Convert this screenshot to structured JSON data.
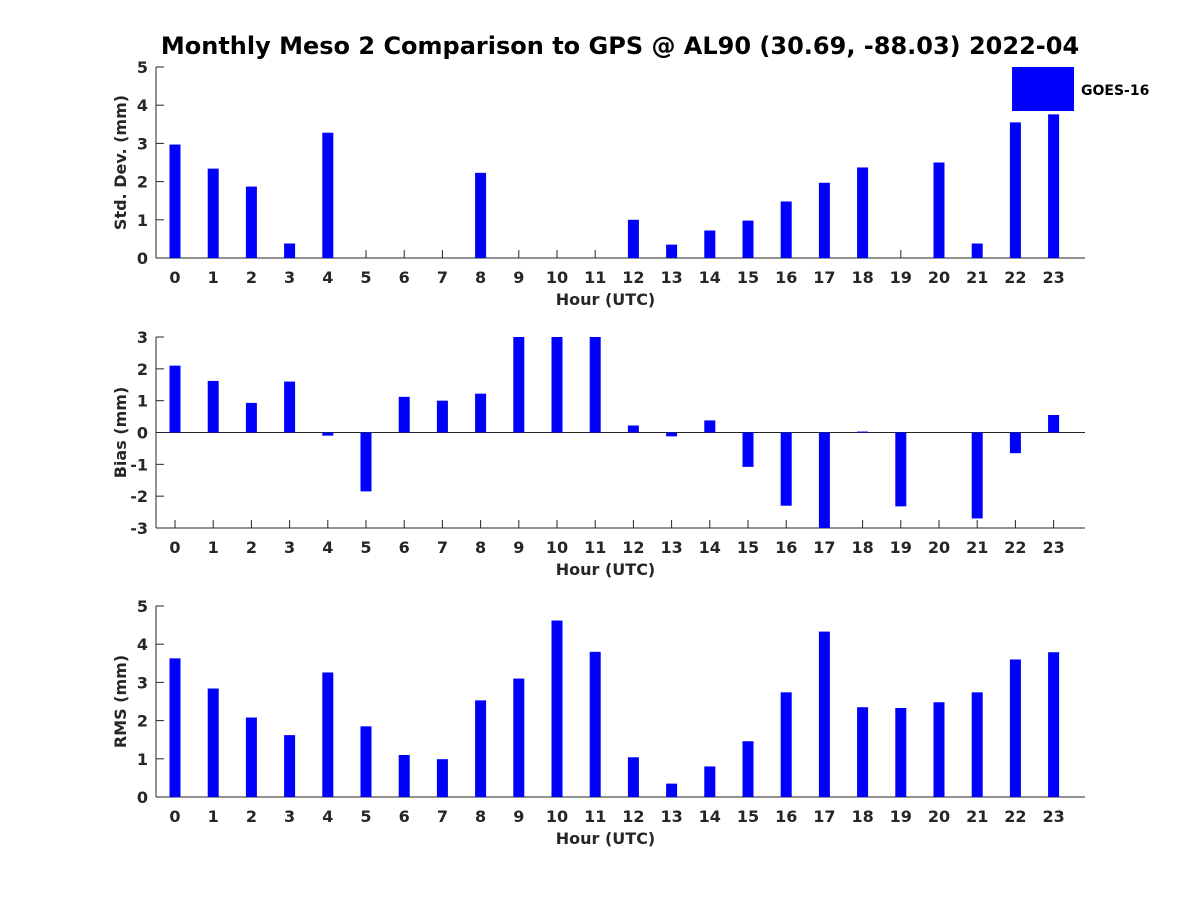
{
  "title": "Monthly Meso 2 Comparison to GPS @ AL90 (30.69, -88.03) 2022-04",
  "legend": {
    "label": "GOES-16",
    "color": "#0000ff",
    "placement": "top-right"
  },
  "chart_data": [
    {
      "type": "bar",
      "xlabel": "Hour (UTC)",
      "ylabel": "Std. Dev. (mm)",
      "ylim": [
        0,
        5
      ],
      "yticks": [
        0,
        1,
        2,
        3,
        4,
        5
      ],
      "categories": [
        "0",
        "1",
        "2",
        "3",
        "4",
        "5",
        "6",
        "7",
        "8",
        "9",
        "10",
        "11",
        "12",
        "13",
        "14",
        "15",
        "16",
        "17",
        "18",
        "19",
        "20",
        "21",
        "22",
        "23"
      ],
      "series": [
        {
          "name": "GOES-16",
          "values": [
            2.97,
            2.34,
            1.87,
            0.38,
            3.28,
            0,
            0,
            0,
            2.23,
            0,
            0,
            0,
            1.0,
            0.35,
            0.72,
            0.98,
            1.48,
            1.97,
            2.37,
            0,
            2.5,
            0.38,
            3.55,
            3.76
          ]
        }
      ]
    },
    {
      "type": "bar",
      "xlabel": "Hour (UTC)",
      "ylabel": "Bias (mm)",
      "ylim": [
        -3,
        3
      ],
      "yticks": [
        -3,
        -2,
        -1,
        0,
        1,
        2,
        3
      ],
      "categories": [
        "0",
        "1",
        "2",
        "3",
        "4",
        "5",
        "6",
        "7",
        "8",
        "9",
        "10",
        "11",
        "12",
        "13",
        "14",
        "15",
        "16",
        "17",
        "18",
        "19",
        "20",
        "21",
        "22",
        "23"
      ],
      "series": [
        {
          "name": "GOES-16",
          "values": [
            2.1,
            1.62,
            0.93,
            1.6,
            -0.1,
            -1.85,
            1.12,
            1.0,
            1.22,
            3.0,
            3.0,
            3.0,
            0.22,
            -0.12,
            0.38,
            -1.08,
            -2.3,
            -3.0,
            0.03,
            -2.32,
            0,
            -2.7,
            -0.65,
            0.55
          ]
        }
      ]
    },
    {
      "type": "bar",
      "xlabel": "Hour (UTC)",
      "ylabel": "RMS (mm)",
      "ylim": [
        0,
        5
      ],
      "yticks": [
        0,
        1,
        2,
        3,
        4,
        5
      ],
      "categories": [
        "0",
        "1",
        "2",
        "3",
        "4",
        "5",
        "6",
        "7",
        "8",
        "9",
        "10",
        "11",
        "12",
        "13",
        "14",
        "15",
        "16",
        "17",
        "18",
        "19",
        "20",
        "21",
        "22",
        "23"
      ],
      "series": [
        {
          "name": "GOES-16",
          "values": [
            3.63,
            2.84,
            2.08,
            1.62,
            3.26,
            1.85,
            1.1,
            0.99,
            2.53,
            3.1,
            4.62,
            3.8,
            1.04,
            0.35,
            0.8,
            1.46,
            2.74,
            4.33,
            2.35,
            2.33,
            2.48,
            2.74,
            3.6,
            3.79
          ]
        }
      ]
    }
  ]
}
